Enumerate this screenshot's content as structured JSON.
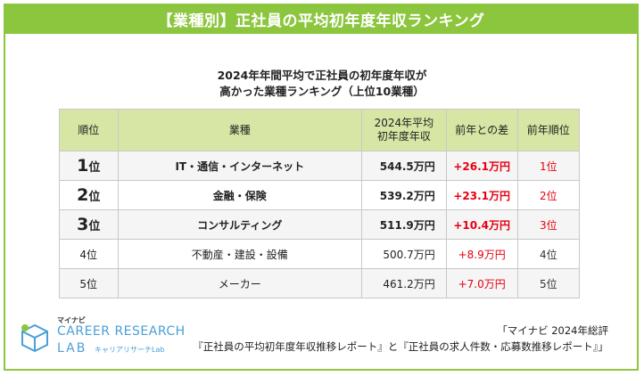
{
  "banner": {
    "title": "【業種別】正社員の平均初年度年収ランキング"
  },
  "subtitle": {
    "line1": "2024年年間平均で正社員の初年度年収が",
    "line2": "高かった業種ランキング（上位10業種）"
  },
  "table": {
    "headers": {
      "rank": "順位",
      "industry": "業種",
      "avg_line1": "2024年平均",
      "avg_line2": "初年度年収",
      "diff": "前年との差",
      "prev": "前年順位"
    },
    "rows": [
      {
        "rank_num": "1",
        "rank_suffix": "位",
        "industry": "IT・通信・インターネット",
        "avg": "544.5万円",
        "diff": "+26.1万円",
        "prev": "1位"
      },
      {
        "rank_num": "2",
        "rank_suffix": "位",
        "industry": "金融・保険",
        "avg": "539.2万円",
        "diff": "+23.1万円",
        "prev": "2位"
      },
      {
        "rank_num": "3",
        "rank_suffix": "位",
        "industry": "コンサルティング",
        "avg": "511.9万円",
        "diff": "+10.4万円",
        "prev": "3位"
      },
      {
        "rank": "4位",
        "industry": "不動産・建設・設備",
        "avg": "500.7万円",
        "diff": "+8.9万円",
        "prev": "4位"
      },
      {
        "rank": "5位",
        "industry": "メーカー",
        "avg": "461.2万円",
        "diff": "+7.0万円",
        "prev": "5位"
      }
    ]
  },
  "logo": {
    "brand_small": "マイナビ",
    "line1": "CAREER RESEARCH",
    "line2": "LAB",
    "line3": "キャリアリサーチLab"
  },
  "source": {
    "line1": "「マイナビ 2024年総評",
    "line2": "『正社員の平均初年度年収推移レポート』と『正社員の求人件数・応募数推移レポート』」"
  },
  "colors": {
    "accent_green": "#8cc63f",
    "header_green": "#d7e6a4",
    "diff_red": "#e60012",
    "logo_blue": "#4a9fd6"
  }
}
